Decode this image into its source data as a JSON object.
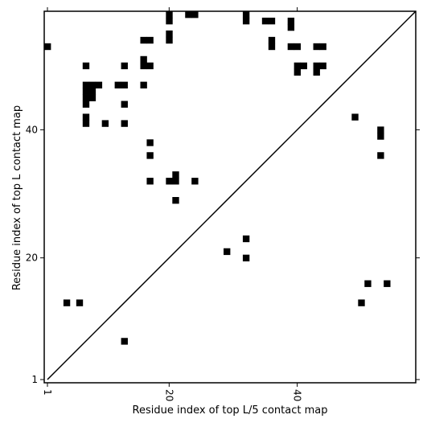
{
  "chart_data": {
    "type": "heatmap",
    "title": "",
    "xlabel": "Residue index of top L/5 contact map",
    "ylabel": "Residue index of top L contact map",
    "xlim": [
      0.5,
      58.5
    ],
    "ylim": [
      0.5,
      58.5
    ],
    "xticks": [
      1,
      20,
      40
    ],
    "yticks": [
      1,
      20,
      40
    ],
    "grid": false,
    "legend": "none",
    "cell_color": "#000000",
    "diagonal_color": "#000000",
    "upper_triangle": [
      [
        1,
        53
      ],
      [
        7,
        50
      ],
      [
        7,
        47
      ],
      [
        7,
        46
      ],
      [
        7,
        45
      ],
      [
        7,
        44
      ],
      [
        7,
        42
      ],
      [
        7,
        41
      ],
      [
        8,
        47
      ],
      [
        8,
        46
      ],
      [
        8,
        45
      ],
      [
        9,
        47
      ],
      [
        10,
        41
      ],
      [
        12,
        47
      ],
      [
        13,
        50
      ],
      [
        13,
        47
      ],
      [
        13,
        44
      ],
      [
        13,
        41
      ],
      [
        16,
        54
      ],
      [
        16,
        51
      ],
      [
        16,
        50
      ],
      [
        16,
        47
      ],
      [
        17,
        54
      ],
      [
        17,
        50
      ],
      [
        17,
        38
      ],
      [
        17,
        36
      ],
      [
        17,
        32
      ],
      [
        20,
        58
      ],
      [
        20,
        57
      ],
      [
        20,
        55
      ],
      [
        20,
        54
      ],
      [
        20,
        32
      ],
      [
        21,
        33
      ],
      [
        21,
        32
      ],
      [
        21,
        29
      ],
      [
        23,
        58
      ],
      [
        24,
        58
      ],
      [
        24,
        32
      ],
      [
        32,
        58
      ],
      [
        32,
        57
      ],
      [
        35,
        57
      ],
      [
        36,
        57
      ],
      [
        36,
        54
      ],
      [
        36,
        53
      ],
      [
        39,
        57
      ],
      [
        39,
        56
      ],
      [
        39,
        53
      ],
      [
        40,
        53
      ],
      [
        40,
        50
      ],
      [
        40,
        49
      ],
      [
        41,
        50
      ],
      [
        43,
        53
      ],
      [
        43,
        50
      ],
      [
        43,
        49
      ],
      [
        44,
        53
      ],
      [
        44,
        50
      ]
    ],
    "lower_triangle": [
      [
        4,
        13
      ],
      [
        6,
        13
      ],
      [
        13,
        7
      ],
      [
        29,
        21
      ],
      [
        32,
        23
      ],
      [
        32,
        20
      ],
      [
        49,
        42
      ],
      [
        50,
        13
      ],
      [
        51,
        16
      ],
      [
        53,
        40
      ],
      [
        53,
        39
      ],
      [
        53,
        36
      ],
      [
        54,
        16
      ]
    ]
  }
}
